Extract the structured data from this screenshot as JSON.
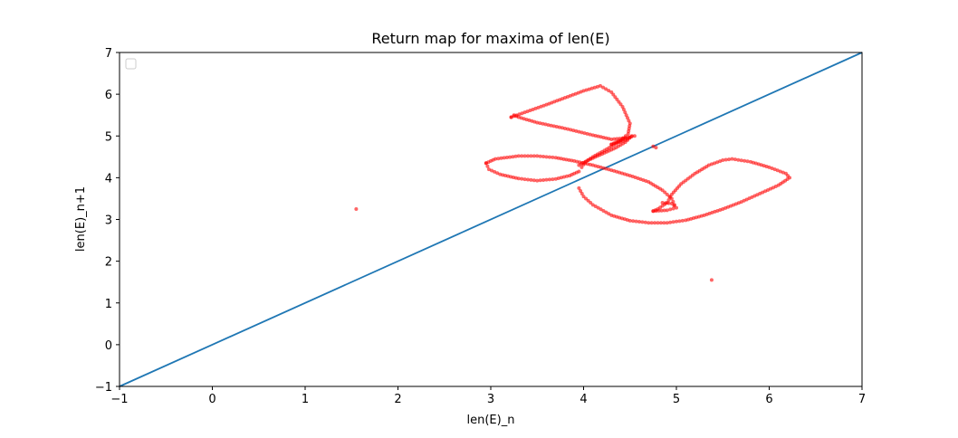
{
  "chart_data": {
    "type": "scatter",
    "title": "Return map for maxima of len(E)",
    "xlabel": "len(E)_n",
    "ylabel": "len(E)_n+1",
    "xlim": [
      -1,
      7
    ],
    "ylim": [
      -1,
      7
    ],
    "xticks": [
      -1,
      0,
      1,
      2,
      3,
      4,
      5,
      6,
      7
    ],
    "yticks": [
      -1,
      0,
      1,
      2,
      3,
      4,
      5,
      6,
      7
    ],
    "xtick_labels": [
      "−1",
      "0",
      "1",
      "2",
      "3",
      "4",
      "5",
      "6",
      "7"
    ],
    "ytick_labels": [
      "−1",
      "0",
      "1",
      "2",
      "3",
      "4",
      "5",
      "6",
      "7"
    ],
    "grid": false,
    "legend": {
      "position": "upper-left",
      "entries": []
    },
    "series": [
      {
        "kind": "line",
        "color": "#1f77b4",
        "x": [
          -1,
          7
        ],
        "y": [
          -1,
          7
        ]
      },
      {
        "kind": "scatter",
        "color": "#ff0000",
        "paths": [
          [
            [
              3.22,
              5.45
            ],
            [
              3.6,
              5.75
            ],
            [
              4.0,
              6.08
            ],
            [
              4.18,
              6.2
            ],
            [
              4.3,
              6.05
            ],
            [
              4.42,
              5.7
            ],
            [
              4.5,
              5.3
            ],
            [
              4.48,
              5.05
            ],
            [
              4.4,
              4.9
            ],
            [
              4.3,
              4.8
            ]
          ],
          [
            [
              4.3,
              4.8
            ],
            [
              4.45,
              4.9
            ],
            [
              4.52,
              5.0
            ],
            [
              4.45,
              4.85
            ],
            [
              4.35,
              4.72
            ],
            [
              4.25,
              4.62
            ],
            [
              4.15,
              4.52
            ],
            [
              4.05,
              4.42
            ],
            [
              3.95,
              4.3
            ]
          ],
          [
            [
              3.22,
              5.45
            ],
            [
              3.25,
              5.5
            ],
            [
              3.3,
              5.45
            ],
            [
              3.5,
              5.32
            ],
            [
              3.8,
              5.18
            ],
            [
              4.1,
              5.02
            ],
            [
              4.3,
              4.92
            ],
            [
              4.45,
              4.95
            ],
            [
              4.55,
              5.0
            ]
          ],
          [
            [
              4.45,
              4.95
            ],
            [
              4.3,
              4.75
            ],
            [
              4.2,
              4.62
            ],
            [
              4.1,
              4.5
            ],
            [
              4.02,
              4.38
            ],
            [
              3.98,
              4.25
            ]
          ],
          [
            [
              2.95,
              4.35
            ],
            [
              3.05,
              4.45
            ],
            [
              3.3,
              4.52
            ],
            [
              3.5,
              4.52
            ],
            [
              3.7,
              4.48
            ],
            [
              3.9,
              4.4
            ],
            [
              4.1,
              4.3
            ],
            [
              4.3,
              4.18
            ],
            [
              4.5,
              4.05
            ],
            [
              4.7,
              3.9
            ],
            [
              4.85,
              3.7
            ],
            [
              4.95,
              3.5
            ],
            [
              4.98,
              3.35
            ]
          ],
          [
            [
              2.95,
              4.35
            ],
            [
              2.98,
              4.2
            ],
            [
              3.1,
              4.08
            ],
            [
              3.3,
              3.98
            ],
            [
              3.5,
              3.93
            ],
            [
              3.7,
              3.97
            ],
            [
              3.85,
              4.05
            ],
            [
              3.95,
              4.15
            ]
          ],
          [
            [
              3.95,
              3.75
            ],
            [
              4.0,
              3.55
            ],
            [
              4.1,
              3.35
            ],
            [
              4.3,
              3.1
            ],
            [
              4.5,
              2.97
            ],
            [
              4.7,
              2.92
            ],
            [
              4.9,
              2.92
            ],
            [
              5.1,
              2.98
            ],
            [
              5.3,
              3.1
            ],
            [
              5.5,
              3.25
            ],
            [
              5.7,
              3.42
            ],
            [
              5.9,
              3.62
            ],
            [
              6.1,
              3.82
            ],
            [
              6.22,
              4.0
            ],
            [
              6.18,
              4.1
            ],
            [
              6.0,
              4.25
            ],
            [
              5.8,
              4.38
            ],
            [
              5.6,
              4.45
            ],
            [
              5.5,
              4.42
            ],
            [
              5.35,
              4.3
            ],
            [
              5.2,
              4.1
            ],
            [
              5.05,
              3.85
            ],
            [
              4.95,
              3.6
            ],
            [
              4.9,
              3.4
            ],
            [
              4.8,
              3.25
            ],
            [
              4.75,
              3.2
            ]
          ],
          [
            [
              4.75,
              3.2
            ],
            [
              4.9,
              3.22
            ],
            [
              5.0,
              3.28
            ],
            [
              4.95,
              3.38
            ],
            [
              4.85,
              3.4
            ]
          ]
        ],
        "points": [
          [
            1.55,
            3.25
          ],
          [
            5.38,
            1.55
          ],
          [
            4.75,
            4.75
          ],
          [
            4.78,
            4.72
          ]
        ]
      }
    ]
  }
}
